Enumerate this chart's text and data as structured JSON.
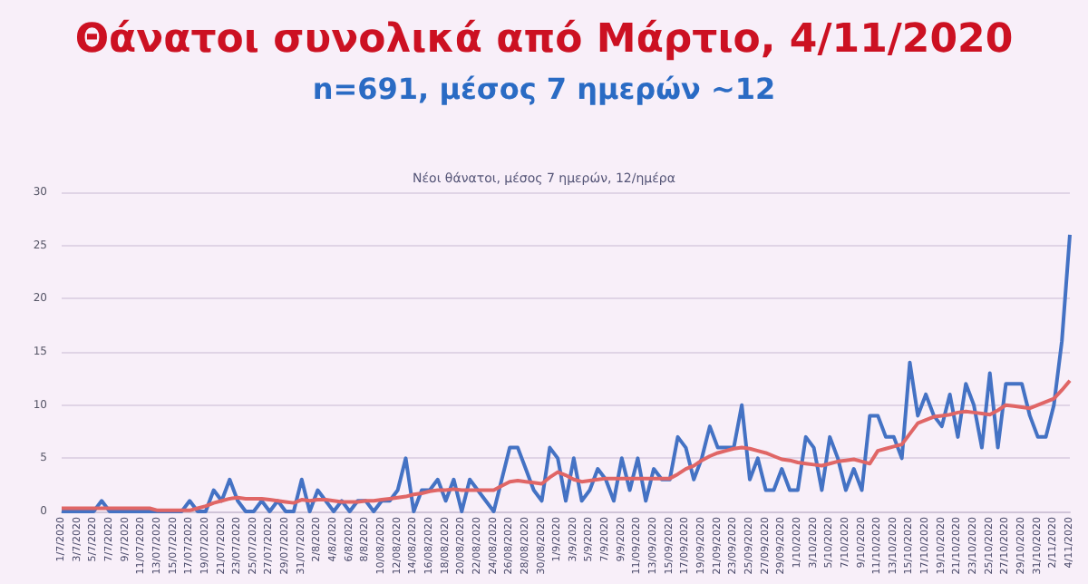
{
  "chart_data": {
    "type": "line",
    "title": "Θάνατοι συνολικά από Μάρτιο, 4/11/2020",
    "subtitle": "n=691, μέσος 7 ημερών ~12",
    "annotations": [
      "Νέοι θάνατοι, μέσος 7 ημερών, 12/ημέρα"
    ],
    "categories": [
      "1/7/2020",
      null,
      "3/7/2020",
      null,
      "5/7/2020",
      null,
      "7/7/2020",
      null,
      "9/7/2020",
      null,
      "11/07/2020",
      null,
      "13/07/2020",
      null,
      "15/07/2020",
      null,
      "17/07/2020",
      null,
      "19/07/2020",
      null,
      "21/07/2020",
      null,
      "23/07/2020",
      null,
      "25/07/2020",
      null,
      "27/07/2020",
      null,
      "29/07/2020",
      null,
      "31/07/2020",
      null,
      "2/8/2020",
      null,
      "4/8/2020",
      null,
      "6/8/2020",
      null,
      "8/8/2020",
      null,
      "10/08/2020",
      null,
      "12/08/2020",
      null,
      "14/08/2020",
      null,
      "16/08/2020",
      null,
      "18/08/2020",
      null,
      "20/08/2020",
      null,
      "22/08/2020",
      null,
      "24/08/2020",
      null,
      "26/08/2020",
      null,
      "28/08/2020",
      null,
      "30/08/2020",
      null,
      "1/9/2020",
      null,
      "3/9/2020",
      null,
      "5/9/2020",
      null,
      "7/9/2020",
      null,
      "9/9/2020",
      null,
      "11/09/2020",
      null,
      "13/09/2020",
      null,
      "15/09/2020",
      null,
      "17/09/2020",
      null,
      "19/09/2020",
      null,
      "21/09/2020",
      null,
      "23/09/2020",
      null,
      "25/09/2020",
      null,
      "27/09/2020",
      null,
      "29/09/2020",
      null,
      "1/10/2020",
      null,
      "3/10/2020",
      null,
      "5/10/2020",
      null,
      "7/10/2020",
      null,
      "9/10/2020",
      null,
      "11/10/2020",
      null,
      "13/10/2020",
      null,
      "15/10/2020",
      null,
      "17/10/2020",
      null,
      "19/10/2020",
      null,
      "21/10/2020",
      null,
      "23/10/2020",
      null,
      "25/10/2020",
      null,
      "27/10/2020",
      null,
      "29/10/2020",
      null,
      "31/10/2020",
      null,
      "2/11/2020",
      null,
      "4/11/2020"
    ],
    "series": [
      {
        "color": "#4472c4",
        "values": [
          0,
          0,
          0,
          0,
          0,
          1,
          0,
          0,
          0,
          0,
          0,
          0,
          0,
          0,
          0,
          0,
          1,
          0,
          0,
          2,
          1,
          3,
          1,
          0,
          0,
          1,
          0,
          1,
          0,
          0,
          3,
          0,
          2,
          1,
          0,
          1,
          0,
          1,
          1,
          0,
          1,
          1,
          2,
          5,
          0,
          2,
          2,
          3,
          1,
          3,
          0,
          3,
          2,
          1,
          0,
          3,
          6,
          6,
          4,
          2,
          1,
          6,
          5,
          1,
          5,
          1,
          2,
          4,
          3,
          1,
          5,
          2,
          5,
          1,
          4,
          3,
          3,
          7,
          6,
          3,
          5,
          8,
          6,
          6,
          6,
          10,
          3,
          5,
          2,
          2,
          4,
          2,
          2,
          7,
          6,
          2,
          7,
          5,
          2,
          4,
          2,
          9,
          9,
          7,
          7,
          5,
          14,
          9,
          11,
          9,
          8,
          11,
          7,
          12,
          10,
          6,
          13,
          6,
          12,
          12,
          12,
          9,
          7,
          7,
          10,
          16,
          26
        ]
      },
      {
        "color": "#e06666",
        "values": [
          0.3,
          0.3,
          0.3,
          0.3,
          0.3,
          0.3,
          0.3,
          0.3,
          0.3,
          0.3,
          0.3,
          0.3,
          0.1,
          0.1,
          0.1,
          0.1,
          0.1,
          0.3,
          0.5,
          0.8,
          1,
          1.2,
          1.3,
          1.2,
          1.2,
          1.2,
          1.1,
          1,
          0.9,
          0.8,
          1.1,
          1,
          1.1,
          1.1,
          1,
          0.9,
          0.9,
          0.9,
          1,
          1,
          1.1,
          1.2,
          1.3,
          1.4,
          1.6,
          1.7,
          1.9,
          2,
          2,
          2.1,
          2,
          2,
          2,
          2,
          2,
          2.4,
          2.8,
          2.9,
          2.8,
          2.7,
          2.6,
          3.2,
          3.7,
          3.4,
          3,
          2.8,
          2.9,
          3,
          3.1,
          3.1,
          3.1,
          3.1,
          3.1,
          3.1,
          3.1,
          3.1,
          3.1,
          3.5,
          4,
          4.3,
          4.8,
          5.2,
          5.5,
          5.7,
          5.9,
          6,
          5.9,
          5.7,
          5.5,
          5.2,
          4.9,
          4.8,
          4.6,
          4.5,
          4.4,
          4.3,
          4.5,
          4.7,
          4.8,
          4.9,
          4.7,
          4.5,
          5.7,
          5.9,
          6.1,
          6.3,
          7.3,
          8.3,
          8.6,
          8.9,
          9,
          9.1,
          9.3,
          9.4,
          9.3,
          9.2,
          9.1,
          9.5,
          10,
          9.9,
          9.8,
          9.7,
          10,
          10.3,
          10.6,
          11.4,
          12.3
        ]
      }
    ],
    "ylim": [
      0,
      30
    ],
    "yticks": [
      0,
      5,
      10,
      15,
      20,
      25,
      30
    ],
    "grid": "y"
  }
}
